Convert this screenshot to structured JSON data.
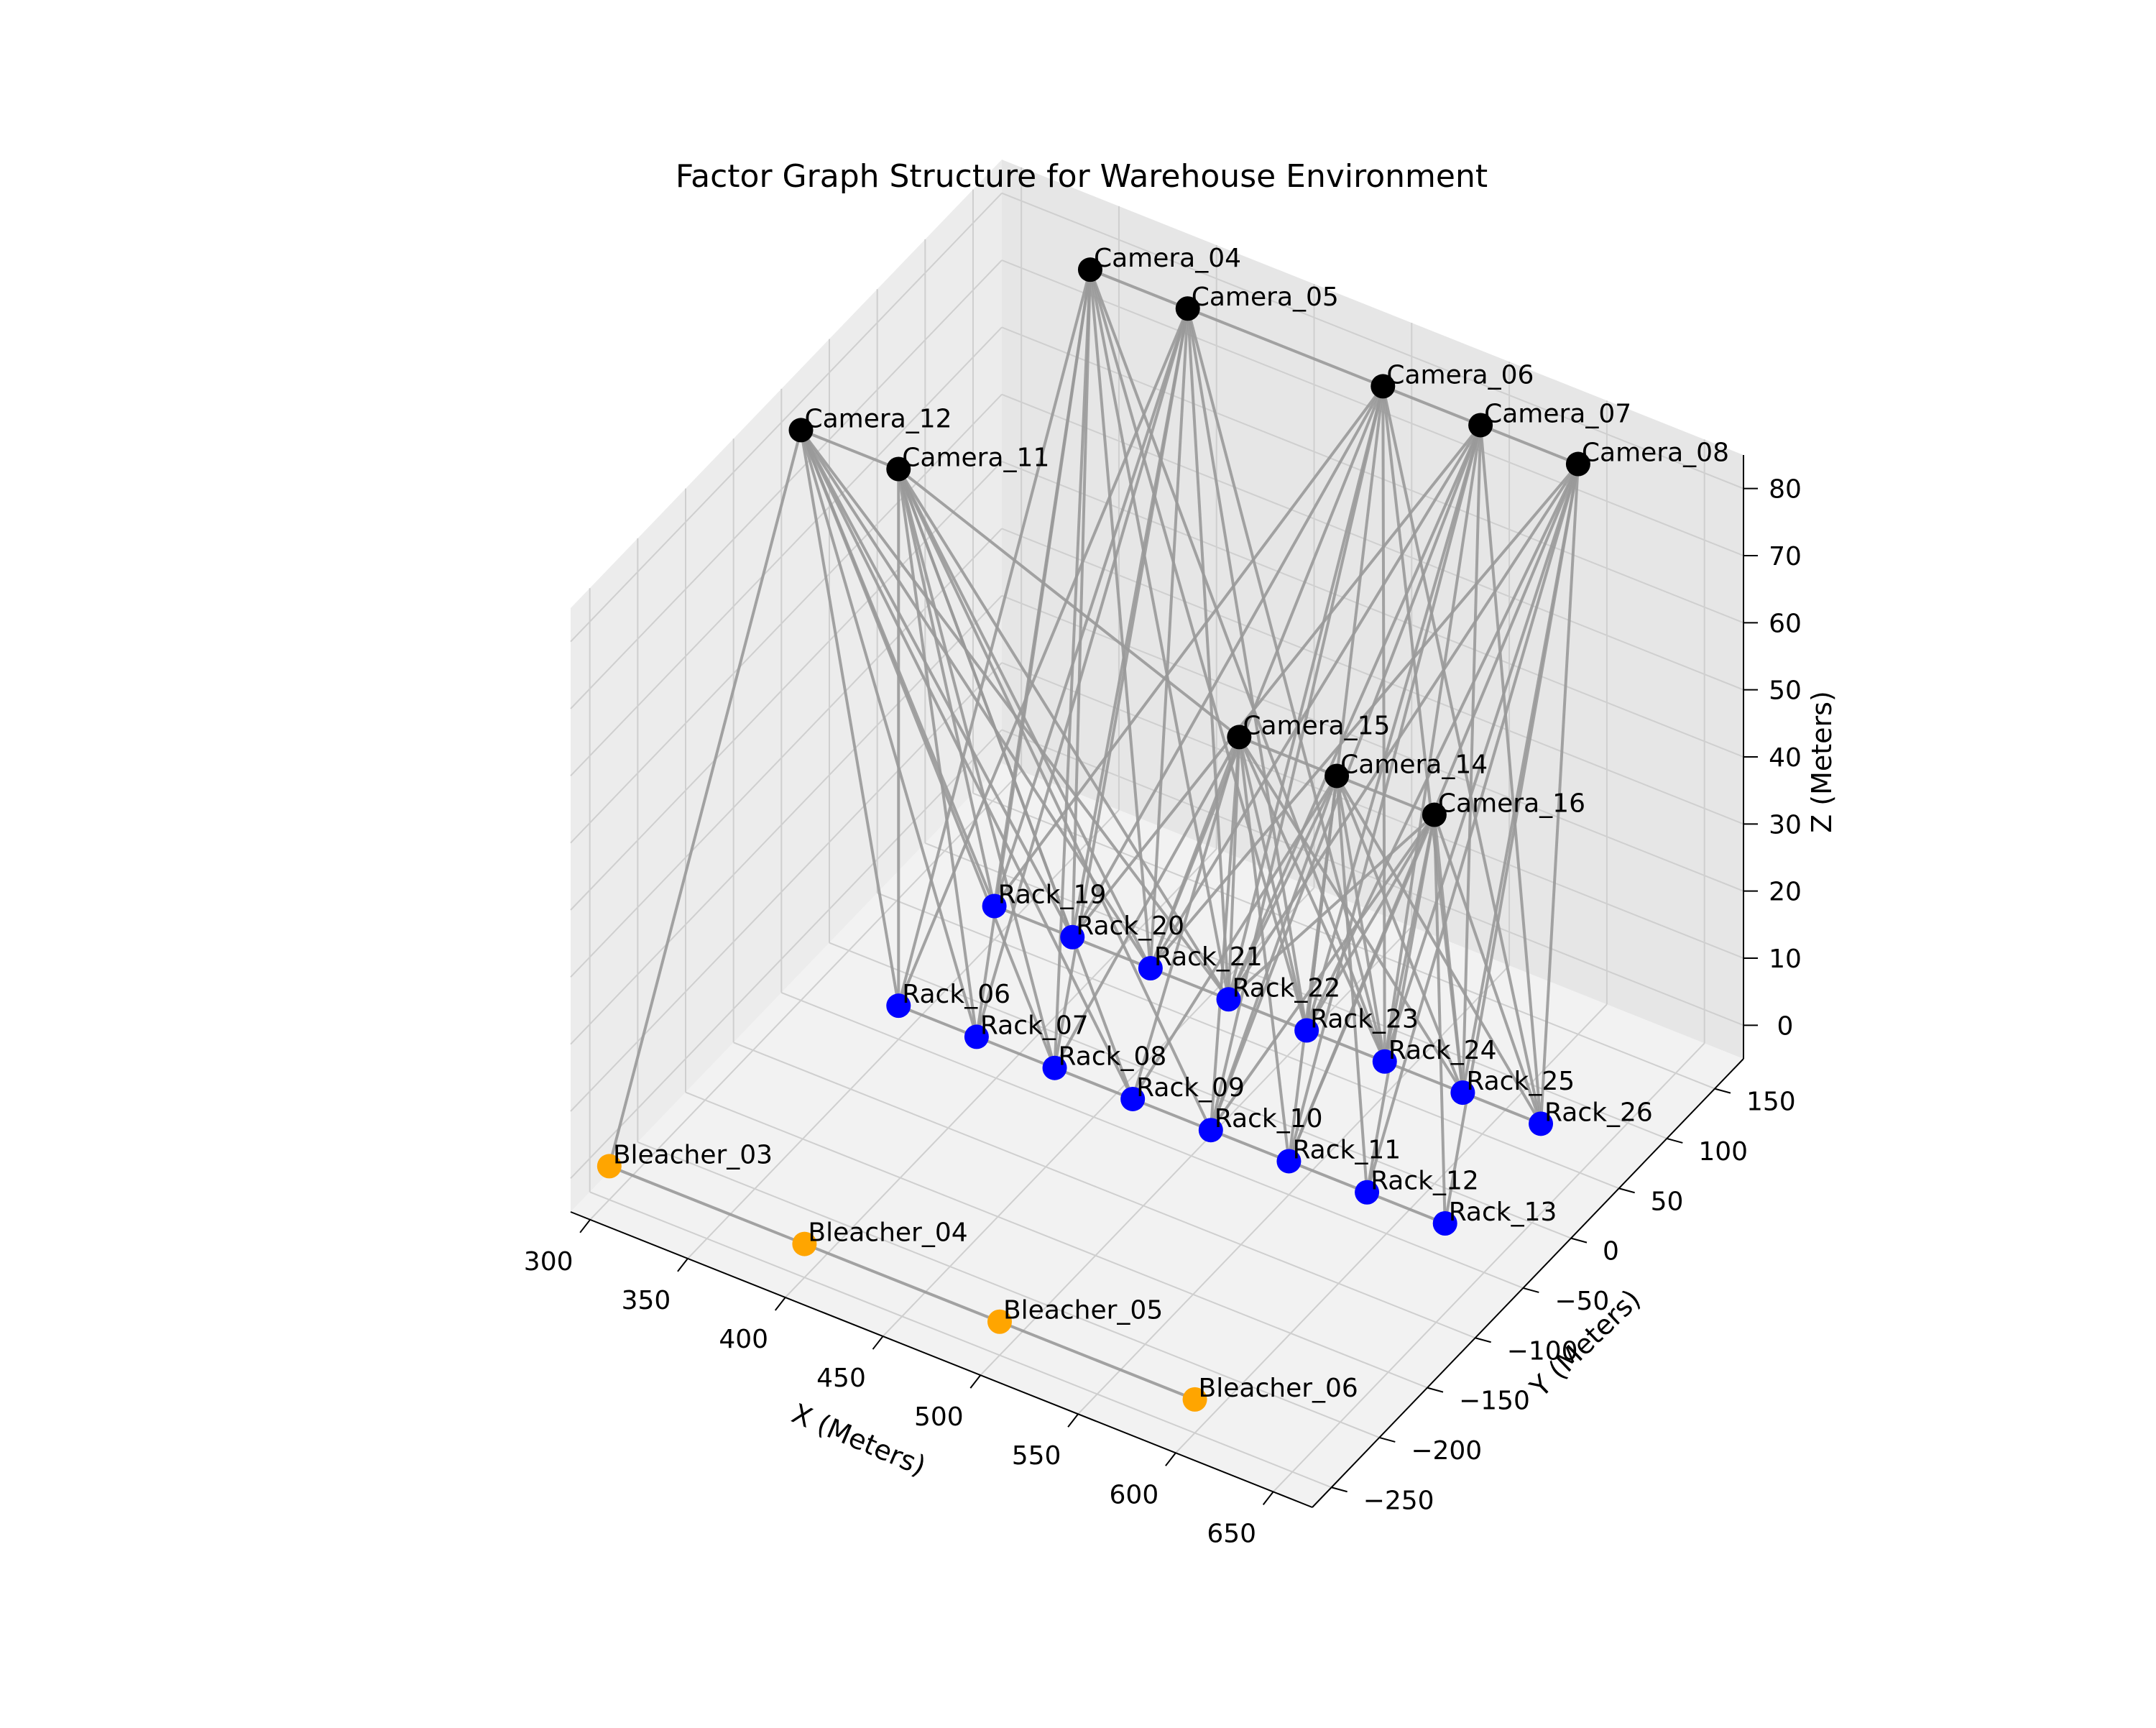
{
  "chart_data": {
    "type": "scatter",
    "subtype": "3d-network",
    "title": "Factor Graph Structure for Warehouse Environment",
    "xlabel": "X (Meters)",
    "ylabel": "Y (Meters)",
    "zlabel": "Z (Meters)",
    "xlim": [
      290,
      670
    ],
    "ylim": [
      -270,
      180
    ],
    "zlim": [
      -5,
      85
    ],
    "xticks": [
      300,
      350,
      400,
      450,
      500,
      550,
      600,
      650
    ],
    "yticks": [
      -250,
      -200,
      -150,
      -100,
      -50,
      0,
      50,
      100,
      150
    ],
    "zticks": [
      0,
      10,
      20,
      30,
      40,
      50,
      60,
      70,
      80
    ],
    "xtick_labels": [
      "300",
      "350",
      "400",
      "450",
      "500",
      "550",
      "600",
      "650"
    ],
    "ytick_labels": [
      "−250",
      "−200",
      "−150",
      "−100",
      "−50",
      "0",
      "50",
      "100",
      "150"
    ],
    "ztick_labels": [
      "0",
      "10",
      "20",
      "30",
      "40",
      "50",
      "60",
      "70",
      "80"
    ],
    "grid": true,
    "colors": {
      "camera": "#000000",
      "rack": "#0000ff",
      "bleacher": "#ffa500",
      "edge": "#999999"
    },
    "series": [
      {
        "group": "camera",
        "points": [
          {
            "label": "Camera_04",
            "x": 350,
            "y": 150,
            "z": 80
          },
          {
            "label": "Camera_05",
            "x": 400,
            "y": 150,
            "z": 80
          },
          {
            "label": "Camera_06",
            "x": 500,
            "y": 150,
            "z": 80
          },
          {
            "label": "Camera_07",
            "x": 550,
            "y": 150,
            "z": 80
          },
          {
            "label": "Camera_08",
            "x": 600,
            "y": 150,
            "z": 80
          },
          {
            "label": "Camera_12",
            "x": 300,
            "y": -50,
            "z": 80
          },
          {
            "label": "Camera_11",
            "x": 350,
            "y": -50,
            "z": 80
          },
          {
            "label": "Camera_15",
            "x": 500,
            "y": 0,
            "z": 50
          },
          {
            "label": "Camera_14",
            "x": 550,
            "y": 0,
            "z": 50
          },
          {
            "label": "Camera_16",
            "x": 600,
            "y": 0,
            "z": 50
          }
        ]
      },
      {
        "group": "rack",
        "points": [
          {
            "label": "Rack_19",
            "x": 350,
            "y": 50,
            "z": 0
          },
          {
            "label": "Rack_20",
            "x": 390,
            "y": 50,
            "z": 0
          },
          {
            "label": "Rack_21",
            "x": 430,
            "y": 50,
            "z": 0
          },
          {
            "label": "Rack_22",
            "x": 470,
            "y": 50,
            "z": 0
          },
          {
            "label": "Rack_23",
            "x": 510,
            "y": 50,
            "z": 0
          },
          {
            "label": "Rack_24",
            "x": 550,
            "y": 50,
            "z": 0
          },
          {
            "label": "Rack_25",
            "x": 590,
            "y": 50,
            "z": 0
          },
          {
            "label": "Rack_26",
            "x": 630,
            "y": 50,
            "z": 0
          },
          {
            "label": "Rack_06",
            "x": 350,
            "y": -50,
            "z": 0
          },
          {
            "label": "Rack_07",
            "x": 390,
            "y": -50,
            "z": 0
          },
          {
            "label": "Rack_08",
            "x": 430,
            "y": -50,
            "z": 0
          },
          {
            "label": "Rack_09",
            "x": 470,
            "y": -50,
            "z": 0
          },
          {
            "label": "Rack_10",
            "x": 510,
            "y": -50,
            "z": 0
          },
          {
            "label": "Rack_11",
            "x": 550,
            "y": -50,
            "z": 0
          },
          {
            "label": "Rack_12",
            "x": 590,
            "y": -50,
            "z": 0
          },
          {
            "label": "Rack_13",
            "x": 630,
            "y": -50,
            "z": 0
          }
        ]
      },
      {
        "group": "bleacher",
        "points": [
          {
            "label": "Bleacher_03",
            "x": 300,
            "y": -250,
            "z": 0
          },
          {
            "label": "Bleacher_04",
            "x": 400,
            "y": -250,
            "z": 0
          },
          {
            "label": "Bleacher_05",
            "x": 500,
            "y": -250,
            "z": 0
          },
          {
            "label": "Bleacher_06",
            "x": 600,
            "y": -250,
            "z": 0
          }
        ]
      }
    ],
    "chains": [
      [
        "Camera_04",
        "Camera_05",
        "Camera_06",
        "Camera_07",
        "Camera_08"
      ],
      [
        "Camera_12",
        "Camera_11",
        "Camera_15",
        "Camera_14",
        "Camera_16"
      ],
      [
        "Rack_19",
        "Rack_20",
        "Rack_21",
        "Rack_22",
        "Rack_23",
        "Rack_24",
        "Rack_25",
        "Rack_26"
      ],
      [
        "Rack_06",
        "Rack_07",
        "Rack_08",
        "Rack_09",
        "Rack_10",
        "Rack_11",
        "Rack_12",
        "Rack_13"
      ],
      [
        "Bleacher_03",
        "Bleacher_04",
        "Bleacher_05",
        "Bleacher_06"
      ]
    ]
  }
}
